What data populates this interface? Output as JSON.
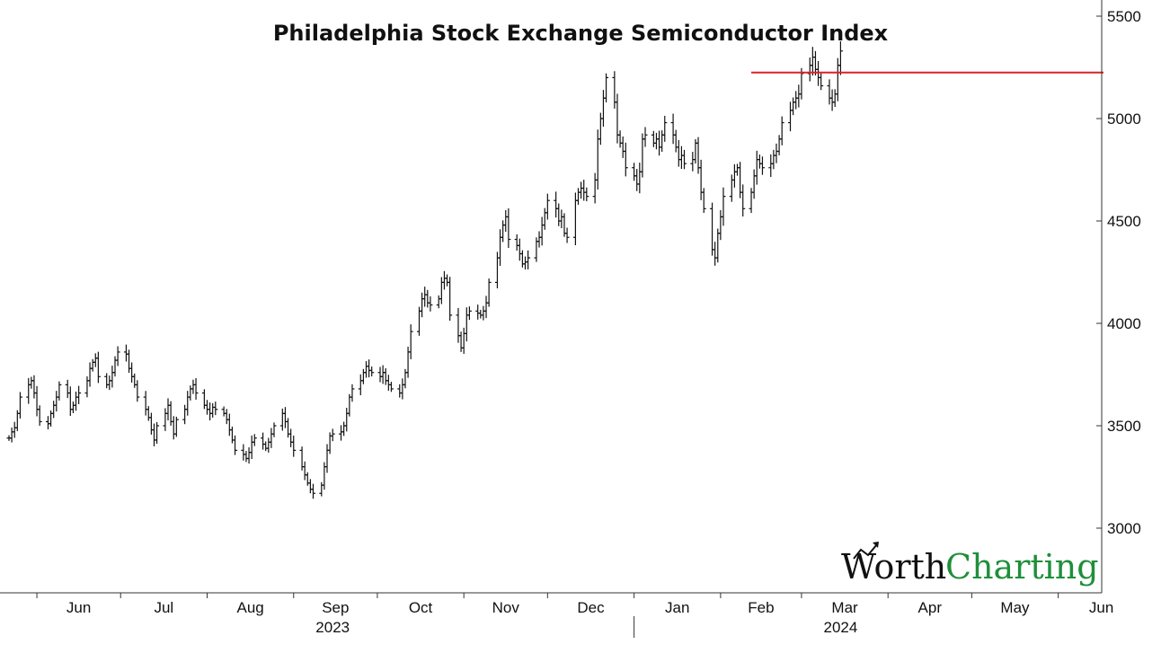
{
  "colors": {
    "bars": "#111111",
    "resistance_line": "#d9222a",
    "axis": "#333333",
    "logo_dark": "#111111",
    "logo_green": "#1f8f3a"
  },
  "logo": {
    "word1": "Worth",
    "word2": "Charting",
    "icon": "rising-arrow-icon"
  },
  "chart_data": {
    "type": "ohlc",
    "title": "Philadelphia Stock Exchange Semiconductor Index",
    "xlabel": "",
    "ylabel": "",
    "ylim": [
      2650,
      5550
    ],
    "yticks": [
      3000,
      3500,
      4000,
      4500,
      5000,
      5500
    ],
    "y_axis_side": "right",
    "grid": false,
    "x_range": [
      "2023-05-22",
      "2024-06-14"
    ],
    "month_labels": [
      {
        "date": "2023-06-01",
        "label": "Jun"
      },
      {
        "date": "2023-07-01",
        "label": "Jul"
      },
      {
        "date": "2023-08-01",
        "label": "Aug"
      },
      {
        "date": "2023-09-01",
        "label": "Sep"
      },
      {
        "date": "2023-10-01",
        "label": "Oct"
      },
      {
        "date": "2023-11-01",
        "label": "Nov"
      },
      {
        "date": "2023-12-01",
        "label": "Dec"
      },
      {
        "date": "2024-01-01",
        "label": "Jan"
      },
      {
        "date": "2024-02-01",
        "label": "Feb"
      },
      {
        "date": "2024-03-01",
        "label": "Mar"
      },
      {
        "date": "2024-04-01",
        "label": "Apr"
      },
      {
        "date": "2024-05-01",
        "label": "May"
      },
      {
        "date": "2024-06-01",
        "label": "Jun"
      }
    ],
    "year_labels": [
      {
        "year": "2023",
        "center_date": "2023-09-15"
      },
      {
        "year": "2024",
        "center_date": "2024-03-15"
      }
    ],
    "year_divider_date": "2024-01-01",
    "resistance": {
      "value": 5225,
      "start": "2024-02-12",
      "end": "2024-06-14"
    },
    "start_date": "2023-05-22",
    "closes": [
      3440,
      3470,
      3490,
      3560,
      3640,
      3700,
      3720,
      3660,
      3580,
      3520,
      3510,
      3560,
      3600,
      3640,
      3700,
      3660,
      3580,
      3600,
      3640,
      3660,
      3720,
      3780,
      3810,
      3830,
      3740,
      3700,
      3720,
      3760,
      3820,
      3860,
      3850,
      3780,
      3740,
      3700,
      3640,
      3580,
      3540,
      3480,
      3430,
      3500,
      3560,
      3600,
      3520,
      3460,
      3530,
      3580,
      3640,
      3680,
      3700,
      3660,
      3600,
      3580,
      3560,
      3590,
      3580,
      3560,
      3530,
      3480,
      3430,
      3380,
      3360,
      3340,
      3370,
      3420,
      3440,
      3410,
      3390,
      3420,
      3460,
      3500,
      3560,
      3520,
      3460,
      3420,
      3380,
      3300,
      3260,
      3220,
      3190,
      3170,
      3210,
      3300,
      3380,
      3450,
      3460,
      3470,
      3500,
      3560,
      3640,
      3680,
      3720,
      3760,
      3790,
      3770,
      3760,
      3740,
      3760,
      3720,
      3700,
      3680,
      3660,
      3700,
      3760,
      3860,
      3960,
      4060,
      4120,
      4140,
      4100,
      4090,
      4120,
      4200,
      4220,
      4200,
      4040,
      3940,
      3880,
      3950,
      4040,
      4060,
      4050,
      4040,
      4060,
      4100,
      4200,
      4320,
      4420,
      4480,
      4520,
      4410,
      4380,
      4340,
      4290,
      4300,
      4320,
      4400,
      4420,
      4480,
      4540,
      4600,
      4560,
      4500,
      4520,
      4440,
      4420,
      4600,
      4640,
      4660,
      4640,
      4620,
      4700,
      4900,
      5000,
      5100,
      5200,
      5080,
      4920,
      4880,
      4840,
      4760,
      4720,
      4680,
      4740,
      4900,
      4920,
      4880,
      4900,
      4860,
      4920,
      4980,
      4920,
      4860,
      4800,
      4820,
      4780,
      4800,
      4880,
      4760,
      4640,
      4560,
      4360,
      4320,
      4440,
      4520,
      4620,
      4700,
      4740,
      4760,
      4640,
      4560,
      4640,
      4720,
      4800,
      4780,
      4760,
      4780,
      4820,
      4840,
      4900,
      4980,
      5040,
      5080,
      5100,
      5120,
      5220,
      5260,
      5300,
      5240,
      5200,
      5160,
      5100,
      5080,
      5120,
      5260,
      5330
    ],
    "note": "Daily OHLC bars (trading days); close values estimated from the chart, daily ranges approximately 1.5% of price"
  }
}
